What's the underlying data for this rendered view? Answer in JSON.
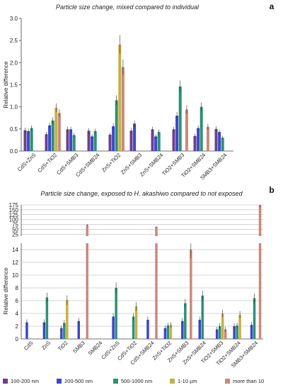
{
  "chart_data": [
    {
      "panel": "a",
      "type": "bar",
      "title": "Particle size change, mixed compared to individual",
      "ylabel": "Relative difference",
      "ylim": [
        0,
        3.0
      ],
      "yticks": [
        "0.0",
        "0.5",
        "1.0",
        "1.5",
        "2.0",
        "2.5",
        "3.0"
      ],
      "categories": [
        "CdS+ZnS",
        "CdS+TiO2",
        "CdS+SMB3",
        "CdS+SMB24",
        "ZnS+TiO2",
        "ZnS+SMB3",
        "ZnS+SMB24",
        "TiO2+SMB3",
        "TiO2+SMB24",
        "SMB3+SMB24"
      ],
      "series": [
        {
          "name": "100-200 nm",
          "values": [
            0.47,
            0.38,
            0.49,
            0.46,
            0.37,
            0.46,
            0.49,
            0.49,
            0.34,
            0.5
          ]
        },
        {
          "name": "200-500 nm",
          "values": [
            0.45,
            0.58,
            0.49,
            0.33,
            0.56,
            0.62,
            0.33,
            0.8,
            0.52,
            0.43
          ]
        },
        {
          "name": "500-1000 nm",
          "values": [
            0.52,
            0.69,
            0.36,
            0.45,
            1.15,
            null,
            0.43,
            1.46,
            1.0,
            0.3
          ]
        },
        {
          "name": "1-10 µm",
          "values": [
            null,
            0.98,
            null,
            null,
            2.41,
            null,
            null,
            null,
            null,
            null
          ]
        },
        {
          "name": "more than 10",
          "values": [
            null,
            0.86,
            null,
            null,
            1.9,
            null,
            null,
            0.94,
            0.55,
            null
          ]
        }
      ]
    },
    {
      "panel": "b",
      "type": "bar",
      "title": "Particle size change, exposed to H. akashiwo compared to not exposed",
      "ylabel": "Relative difference",
      "ylim_lower": [
        0,
        15
      ],
      "ylim_upper": [
        15,
        175
      ],
      "yticks_lower": [
        "0",
        "2",
        "4",
        "6",
        "8",
        "10",
        "12",
        "14"
      ],
      "yticks_upper": [
        "25",
        "50",
        "75",
        "100",
        "125",
        "150",
        "175"
      ],
      "categories": [
        "CdS",
        "ZnS",
        "TiO2",
        "SMB3",
        "SMB24",
        "CdS+ZnS",
        "CdS+TiO2",
        "CdS+SMB24",
        "ZnS+TiO2",
        "ZnS+SMB3",
        "ZnS+SMB24",
        "TiO2+SMB3",
        "TiO2+SMB24",
        "SMB3+SMB24"
      ],
      "series": [
        {
          "name": "100-200 nm",
          "values": [
            null,
            null,
            null,
            null,
            null,
            null,
            null,
            null,
            null,
            null,
            null,
            null,
            null,
            null
          ]
        },
        {
          "name": "200-500 nm",
          "values": [
            2.6,
            2.6,
            1.7,
            2.8,
            null,
            3.5,
            null,
            3.0,
            1.7,
            2.8,
            3.0,
            1.5,
            2.0,
            2.2
          ]
        },
        {
          "name": "500-1000 nm",
          "values": [
            null,
            6.5,
            2.5,
            null,
            null,
            8.0,
            3.5,
            null,
            2.1,
            5.6,
            6.8,
            2.0,
            2.1,
            6.4
          ]
        },
        {
          "name": "1-10 µm",
          "values": [
            null,
            null,
            6.1,
            null,
            null,
            null,
            5.1,
            null,
            2.2,
            null,
            null,
            4.0,
            3.8,
            null
          ]
        },
        {
          "name": "more than 10",
          "values": [
            null,
            null,
            null,
            72,
            null,
            null,
            null,
            62,
            null,
            14,
            null,
            1.5,
            null,
            175
          ]
        }
      ]
    }
  ],
  "panel_labels": {
    "a": "a",
    "b": "b"
  },
  "legend": [
    {
      "name": "100-200 nm",
      "color": "#6b3f8e"
    },
    {
      "name": "200-500 nm",
      "color": "#3d47c9"
    },
    {
      "name": "500-1000 nm",
      "color": "#2e9075"
    },
    {
      "name": "1-10 µm",
      "color": "#c5b04a"
    },
    {
      "name": "more than 10",
      "color": "#c98a7a"
    }
  ]
}
